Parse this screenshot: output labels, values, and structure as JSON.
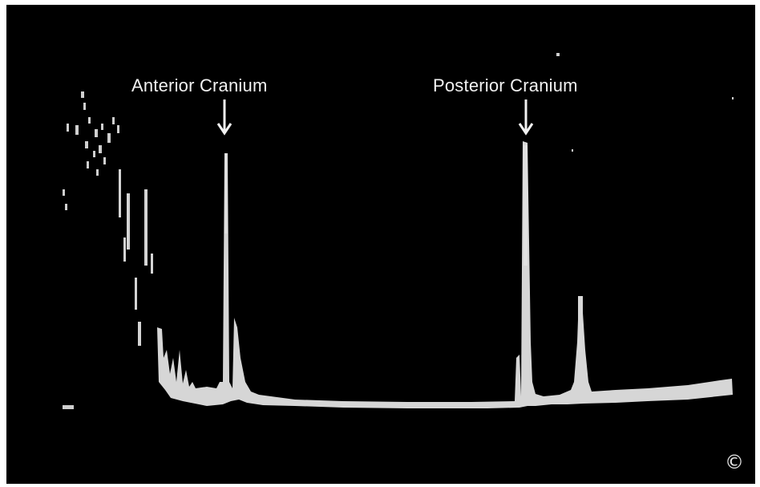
{
  "annotations": {
    "anterior": "Anterior Cranium",
    "posterior": "Posterior Cranium"
  },
  "copyright_symbol": "©",
  "colors": {
    "background": "#000000",
    "trace": "#d6d6d6",
    "text": "#f2f2f2"
  }
}
